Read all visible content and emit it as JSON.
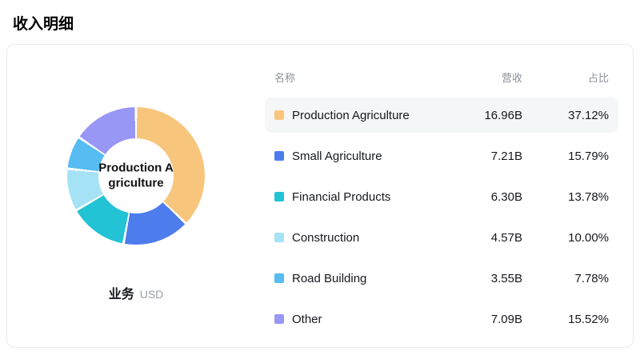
{
  "page": {
    "title": "收入明细"
  },
  "chart": {
    "center_label": "Production Agriculture",
    "footer_label": "业务",
    "footer_unit": "USD"
  },
  "table_headers": {
    "name": "名称",
    "revenue": "营收",
    "share": "占比"
  },
  "rows": [
    {
      "name": "Production Agriculture",
      "revenue": "16.96B",
      "share": "37.12%",
      "color": "#F8C57D",
      "highlighted": true
    },
    {
      "name": "Small Agriculture",
      "revenue": "7.21B",
      "share": "15.79%",
      "color": "#4D7CEC",
      "highlighted": false
    },
    {
      "name": "Financial Products",
      "revenue": "6.30B",
      "share": "13.78%",
      "color": "#22C3D4",
      "highlighted": false
    },
    {
      "name": "Construction",
      "revenue": "4.57B",
      "share": "10.00%",
      "color": "#A5E2F6",
      "highlighted": false
    },
    {
      "name": "Road Building",
      "revenue": "3.55B",
      "share": "7.78%",
      "color": "#57BCF2",
      "highlighted": false
    },
    {
      "name": "Other",
      "revenue": "7.09B",
      "share": "15.52%",
      "color": "#9897F6",
      "highlighted": false
    }
  ],
  "chart_data": {
    "type": "pie",
    "title": "收入明细",
    "unit": "USD",
    "donut": true,
    "start_angle_deg": 0,
    "direction": "clockwise",
    "categories": [
      "Production Agriculture",
      "Small Agriculture",
      "Financial Products",
      "Construction",
      "Road Building",
      "Other"
    ],
    "values": [
      16.96,
      7.21,
      6.3,
      4.57,
      3.55,
      7.09
    ],
    "percentages": [
      37.12,
      15.79,
      13.78,
      10.0,
      7.78,
      15.52
    ],
    "colors": [
      "#F8C57D",
      "#4D7CEC",
      "#22C3D4",
      "#A5E2F6",
      "#57BCF2",
      "#9897F6"
    ],
    "center_label": "Production Agriculture",
    "legend_position": "right-table"
  }
}
